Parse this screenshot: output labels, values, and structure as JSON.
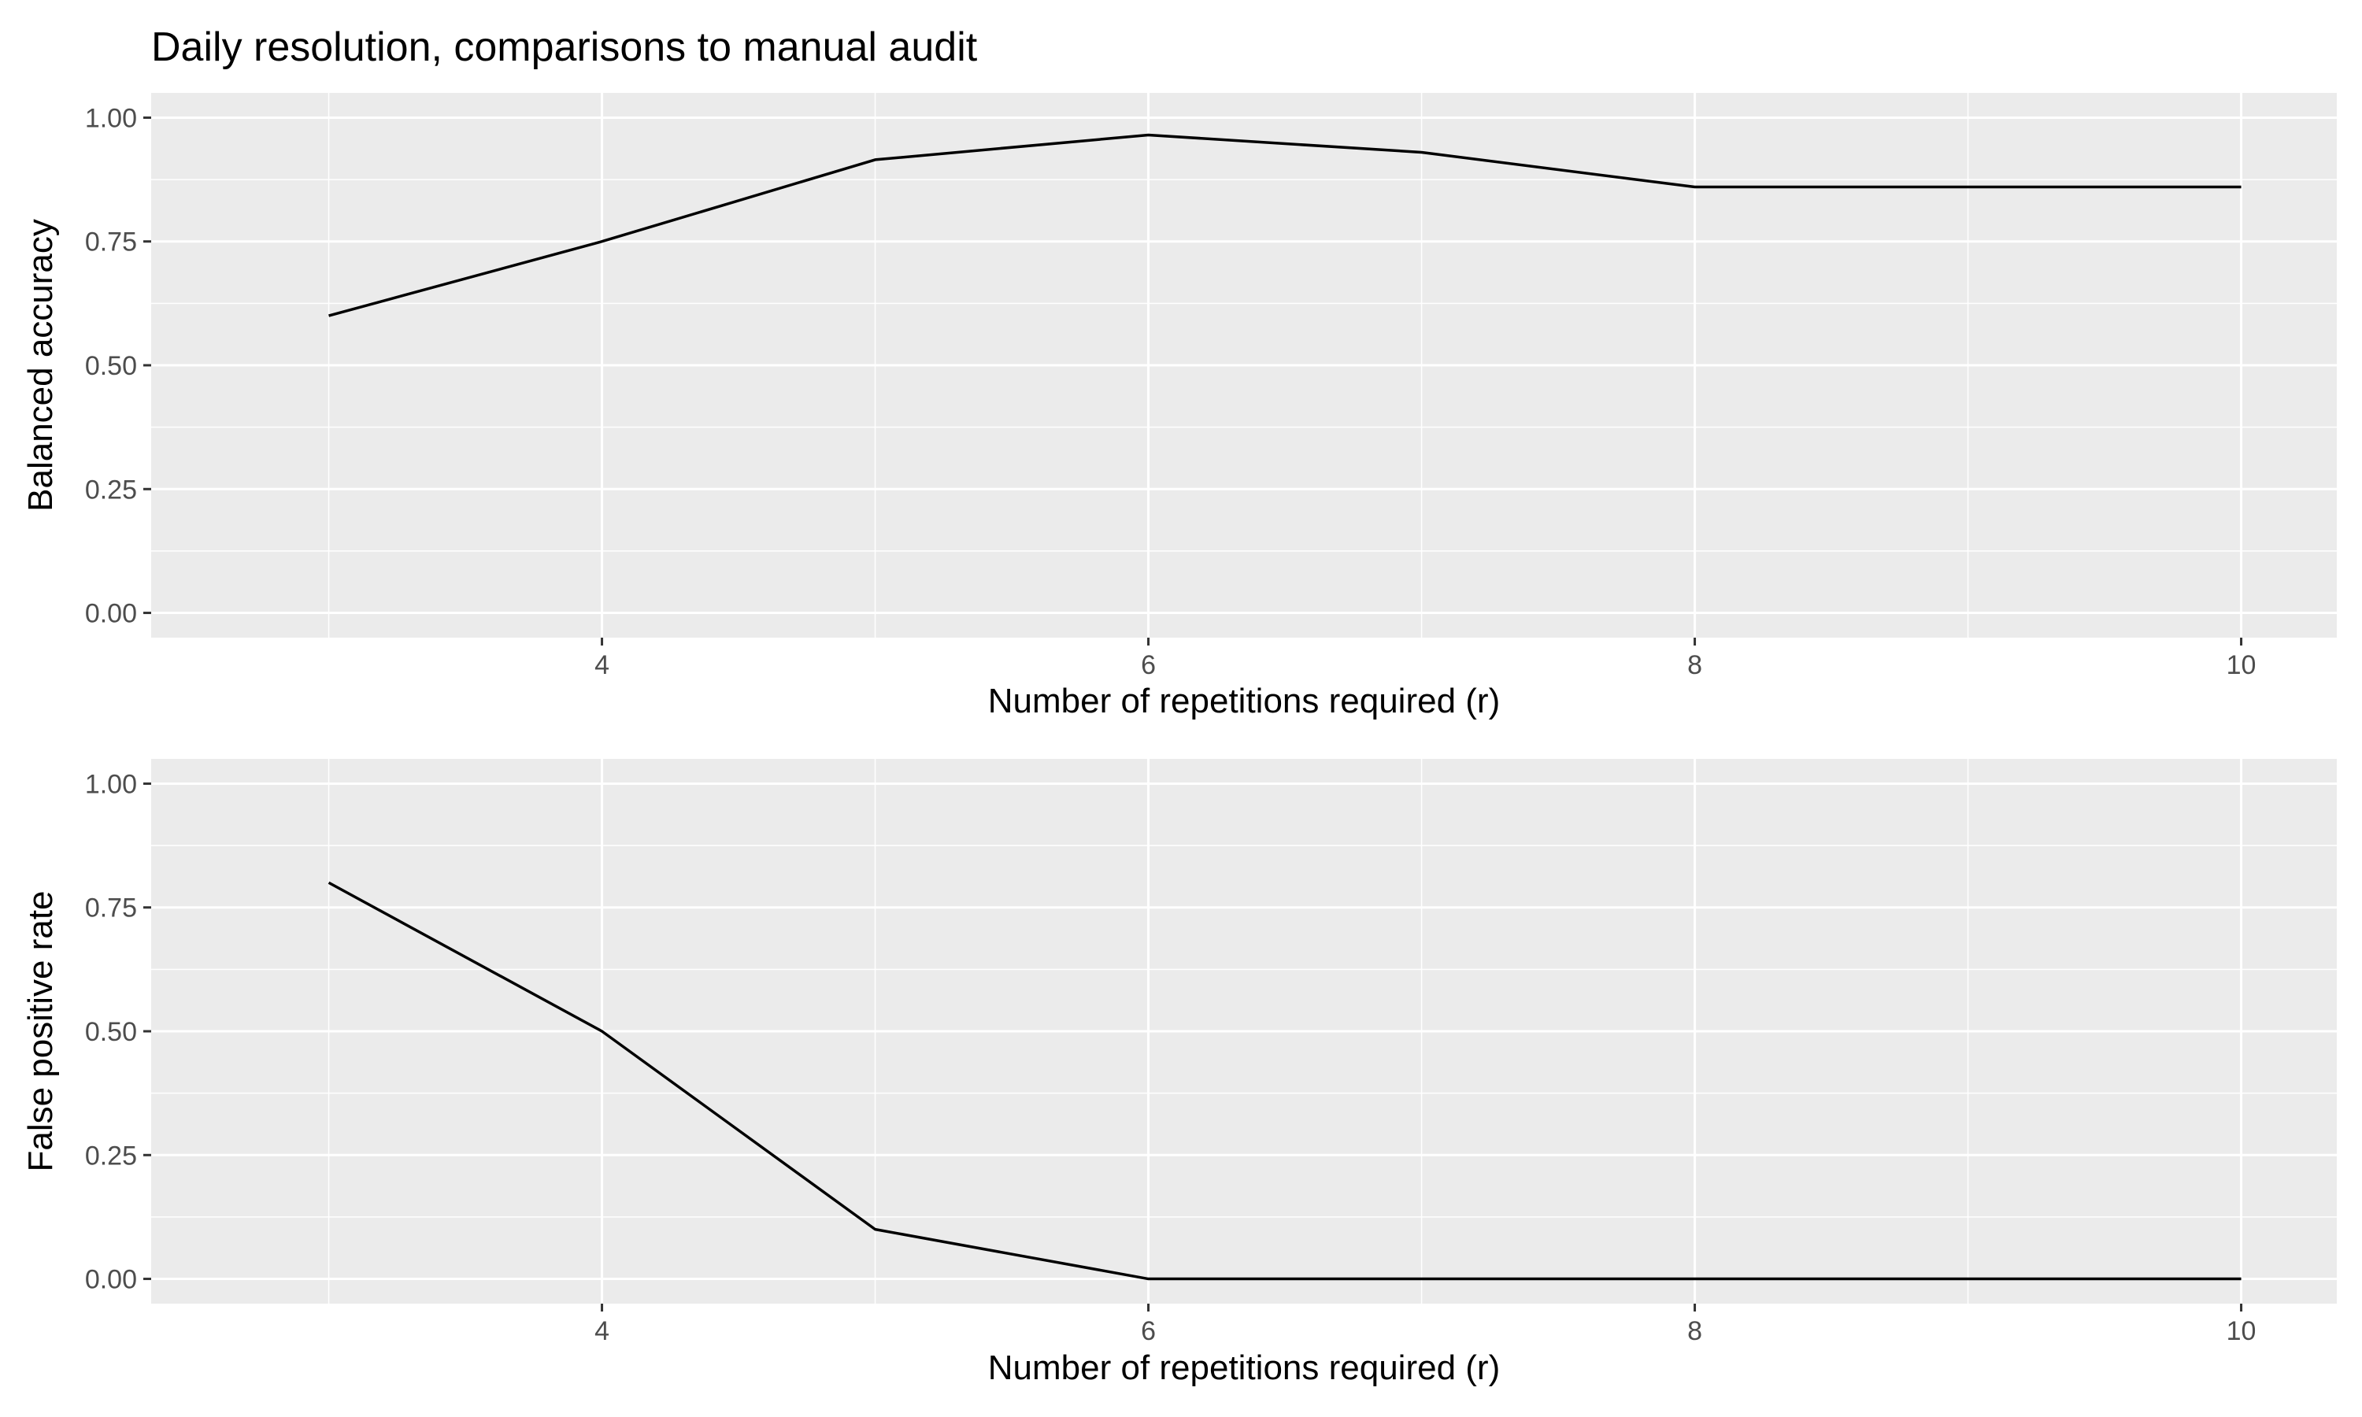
{
  "title": "Daily resolution, comparisons to manual audit",
  "chart_data": [
    {
      "type": "line",
      "xlabel": "Number of repetitions required (r)",
      "ylabel": "Balanced accuracy",
      "x": [
        3,
        4,
        5,
        6,
        7,
        8,
        9,
        10
      ],
      "y": [
        0.6,
        0.75,
        0.915,
        0.965,
        0.93,
        0.86,
        0.86,
        0.86
      ],
      "xlim": [
        2.35,
        10.35
      ],
      "ylim": [
        -0.05,
        1.05
      ],
      "x_ticks": [
        4,
        6,
        8,
        10
      ],
      "x_tick_labels": [
        "4",
        "6",
        "8",
        "10"
      ],
      "x_minor_ticks": [
        3,
        5,
        7,
        9
      ],
      "y_ticks": [
        0,
        0.25,
        0.5,
        0.75,
        1.0
      ],
      "y_tick_labels": [
        "0.00",
        "0.25",
        "0.50",
        "0.75",
        "1.00"
      ],
      "grid": true,
      "line_color": "#000000"
    },
    {
      "type": "line",
      "xlabel": "Number of repetitions required (r)",
      "ylabel": "False positive rate",
      "x": [
        3,
        4,
        5,
        6,
        7,
        8,
        9,
        10
      ],
      "y": [
        0.8,
        0.5,
        0.1,
        0.0,
        0.0,
        0.0,
        0.0,
        0.0
      ],
      "xlim": [
        2.35,
        10.35
      ],
      "ylim": [
        -0.05,
        1.05
      ],
      "x_ticks": [
        4,
        6,
        8,
        10
      ],
      "x_tick_labels": [
        "4",
        "6",
        "8",
        "10"
      ],
      "x_minor_ticks": [
        3,
        5,
        7,
        9
      ],
      "y_ticks": [
        0,
        0.25,
        0.5,
        0.75,
        1.0
      ],
      "y_tick_labels": [
        "0.00",
        "0.25",
        "0.50",
        "0.75",
        "1.00"
      ],
      "grid": true,
      "line_color": "#000000"
    }
  ],
  "colors": {
    "panel_background": "#ebebeb",
    "grid_major": "#ffffff",
    "line": "#000000",
    "tick_text": "#4d4d4d"
  }
}
